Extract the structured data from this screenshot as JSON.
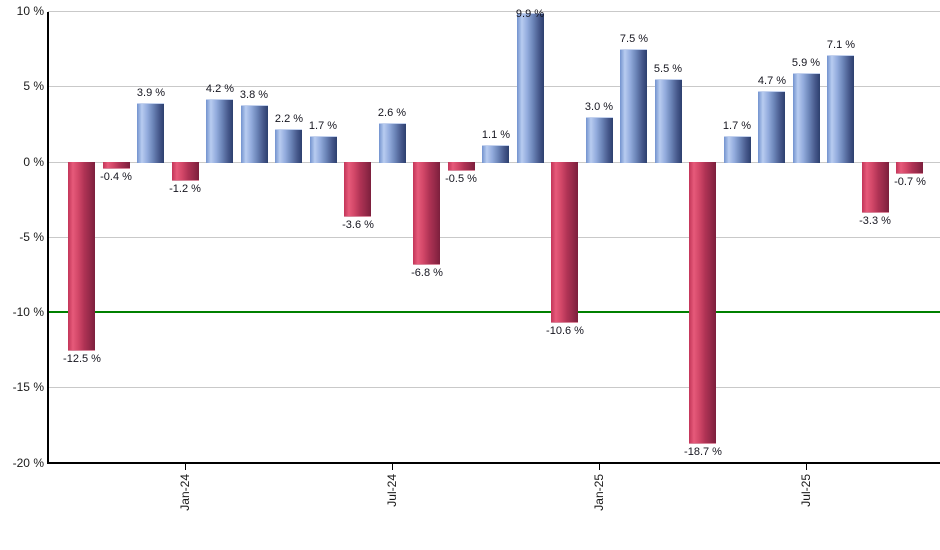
{
  "chart_data": {
    "type": "bar",
    "title": "",
    "xlabel": "",
    "ylabel": "",
    "unit": "%",
    "values": [
      -12.5,
      -0.4,
      3.9,
      -1.2,
      4.2,
      3.8,
      2.2,
      1.7,
      -3.6,
      2.6,
      -6.8,
      -0.5,
      1.1,
      9.9,
      -10.6,
      3.0,
      7.5,
      5.5,
      -18.7,
      1.7,
      4.7,
      5.9,
      7.1,
      -3.3,
      -0.7
    ],
    "bar_labels": [
      "-12.5 %",
      "-0.4 %",
      "3.9 %",
      "-1.2 %",
      "4.2 %",
      "3.8 %",
      "2.2 %",
      "1.7 %",
      "-3.6 %",
      "2.6 %",
      "-6.8 %",
      "-0.5 %",
      "1.1 %",
      "9.9 %",
      "-10.6 %",
      "3.0 %",
      "7.5 %",
      "5.5 %",
      "-18.7 %",
      "1.7 %",
      "4.7 %",
      "5.9 %",
      "7.1 %",
      "-3.3 %",
      "-0.7 %"
    ],
    "x_ticks": [
      {
        "label": "Jan-24",
        "bar_index": 3
      },
      {
        "label": "Jul-24",
        "bar_index": 9
      },
      {
        "label": "Jan-25",
        "bar_index": 15
      },
      {
        "label": "Jul-25",
        "bar_index": 21
      }
    ],
    "y_ticks": [
      {
        "label": "10 %",
        "value": 10
      },
      {
        "label": "5 %",
        "value": 5
      },
      {
        "label": "0 %",
        "value": 0
      },
      {
        "label": "-5 %",
        "value": -5
      },
      {
        "label": "-10 %",
        "value": -10
      },
      {
        "label": "-15 %",
        "value": -15
      },
      {
        "label": "-20 %",
        "value": -20
      }
    ],
    "ylim": [
      -20,
      10
    ],
    "grid": true,
    "legend": "none",
    "reference_line": {
      "value": -10,
      "color": "#008000"
    },
    "colors": {
      "positive_bar": "#7d9bd8",
      "positive_bar_highlight": "#b8ccf0",
      "positive_bar_dark": "#2c3f6e",
      "negative_bar": "#cc3e61",
      "negative_bar_highlight": "#e65a7a",
      "negative_bar_dark": "#7c1f3d",
      "gridline": "#c9c9c9",
      "axis": "#000000",
      "label_text": "#15151f"
    }
  }
}
